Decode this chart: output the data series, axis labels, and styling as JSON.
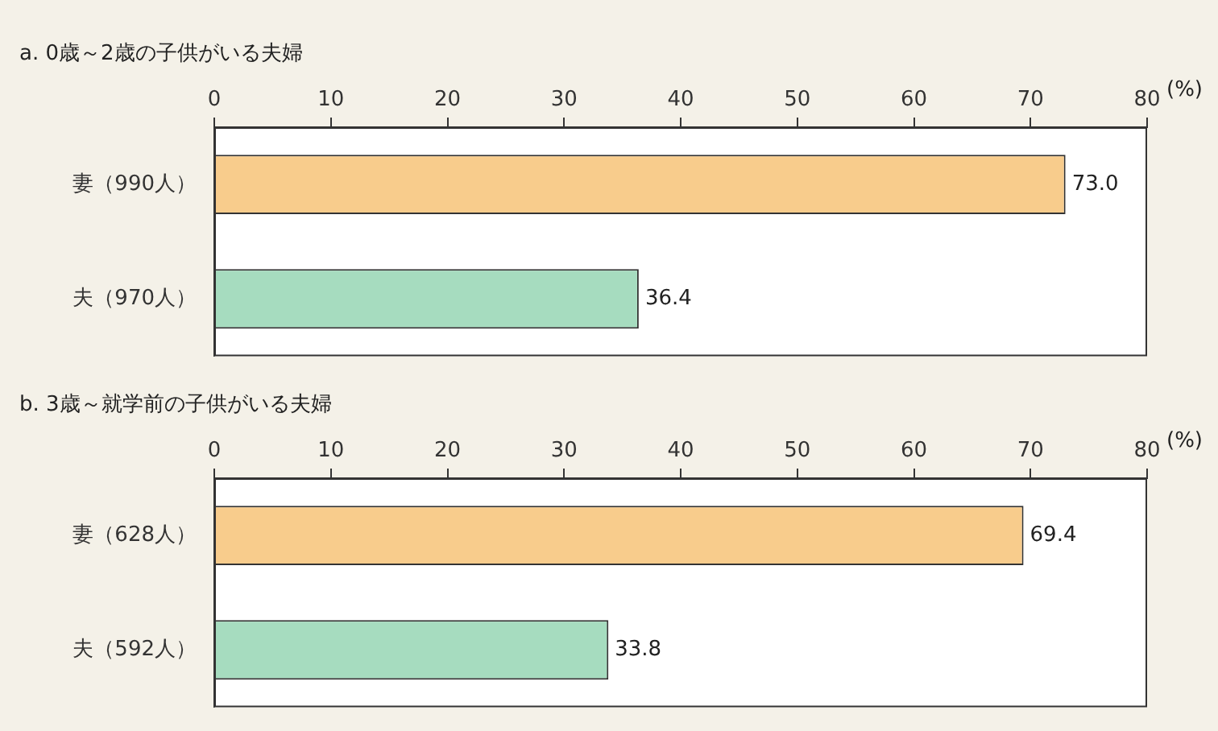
{
  "chart_data": [
    {
      "type": "bar",
      "orientation": "horizontal",
      "title": "a.  0歳～2歳の子供がいる夫婦",
      "xlabel": "(%)",
      "categories": [
        "妻（990人）",
        "夫（970人）"
      ],
      "values": [
        73.0,
        36.4
      ],
      "value_labels": [
        "73.0",
        "36.4"
      ],
      "colors": [
        "#f8cc8c",
        "#a6dcbf"
      ],
      "xlim": [
        0,
        80
      ],
      "xticks": [
        0,
        10,
        20,
        30,
        40,
        50,
        60,
        70,
        80
      ]
    },
    {
      "type": "bar",
      "orientation": "horizontal",
      "title": "b.  3歳～就学前の子供がいる夫婦",
      "xlabel": "(%)",
      "categories": [
        "妻（628人）",
        "夫（592人）"
      ],
      "values": [
        69.4,
        33.8
      ],
      "value_labels": [
        "69.4",
        "33.8"
      ],
      "colors": [
        "#f8cc8c",
        "#a6dcbf"
      ],
      "xlim": [
        0,
        80
      ],
      "xticks": [
        0,
        10,
        20,
        30,
        40,
        50,
        60,
        70,
        80
      ]
    }
  ]
}
